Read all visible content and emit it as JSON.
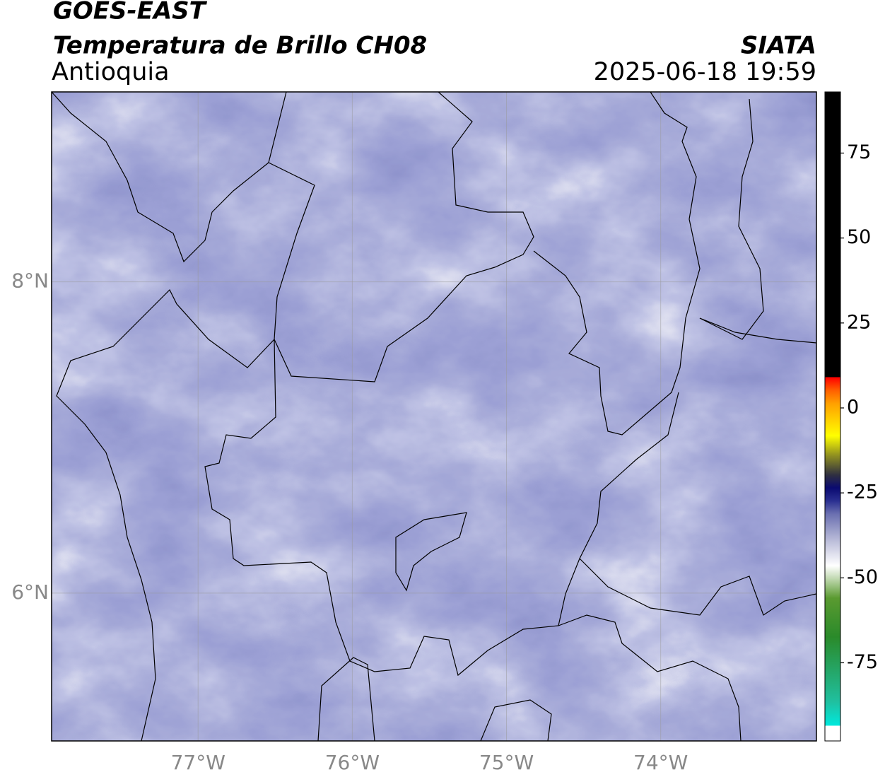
{
  "header": {
    "source": "GOES-EAST",
    "title": "Temperatura de Brillo CH08",
    "agency": "SIATA",
    "region": "Antioquia",
    "datetime": "2025-06-18 19:59"
  },
  "map": {
    "xlim": [
      -77.95,
      -72.99
    ],
    "ylim": [
      5.05,
      9.22
    ],
    "xticks": [
      {
        "value": -77,
        "label": "77°W"
      },
      {
        "value": -76,
        "label": "76°W"
      },
      {
        "value": -75,
        "label": "75°W"
      },
      {
        "value": -74,
        "label": "74°W"
      }
    ],
    "yticks": [
      {
        "value": 8,
        "label": "8°N"
      },
      {
        "value": 6,
        "label": "6°N"
      }
    ],
    "grid": true
  },
  "colorbar": {
    "lim": [
      -98,
      93
    ],
    "ticks": [
      75,
      50,
      25,
      0,
      -25,
      -50,
      -75
    ]
  }
}
